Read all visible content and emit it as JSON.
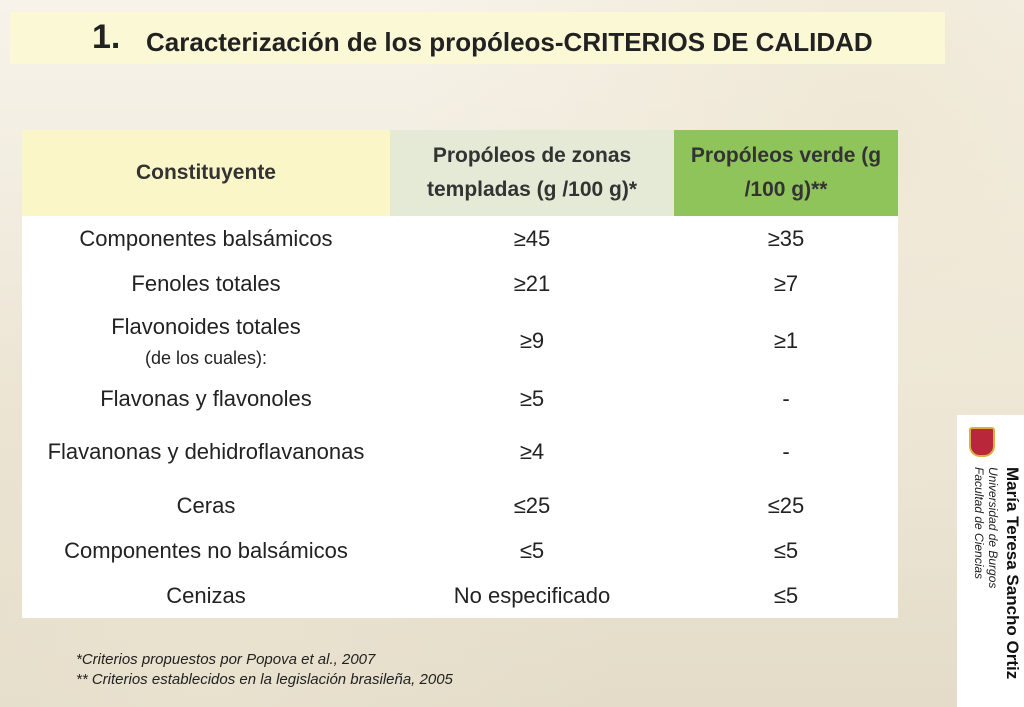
{
  "header": {
    "number": "1.",
    "title": "Caracterización de los propóleos-CRITERIOS DE CALIDAD"
  },
  "table": {
    "columns": [
      "Constituyente",
      "Propóleos de zonas templadas (g /100 g)*",
      "Propóleos verde (g /100 g)**"
    ],
    "rows": [
      {
        "constituyente": "Componentes balsámicos",
        "templadas": "≥45",
        "verde": "≥35"
      },
      {
        "constituyente": "Fenoles totales",
        "templadas": "≥21",
        "verde": "≥7"
      },
      {
        "constituyente": "Flavonoides totales",
        "nota": "(de los cuales):",
        "templadas": "≥9",
        "verde": "≥1"
      },
      {
        "constituyente": "Flavonas y flavonoles",
        "templadas": "≥5",
        "verde": "-"
      },
      {
        "constituyente": "Flavanonas y dehidroflavanonas",
        "templadas": "≥4",
        "verde": "-"
      },
      {
        "constituyente": "Ceras",
        "templadas": "≤25",
        "verde": "≤25"
      },
      {
        "constituyente": "Componentes no balsámicos",
        "templadas": "≤5",
        "verde": "≤5"
      },
      {
        "constituyente": "Cenizas",
        "templadas": "No especificado",
        "verde": "≤5"
      }
    ]
  },
  "footnotes": [
    "*Criterios propuestos por Popova et al., 2007",
    "** Criterios establecidos en la legislación brasileña, 2005"
  ],
  "author": {
    "name": "María Teresa Sancho Ortiz",
    "university": "Universidad de Burgos",
    "faculty": "Facultad de Ciencias"
  }
}
